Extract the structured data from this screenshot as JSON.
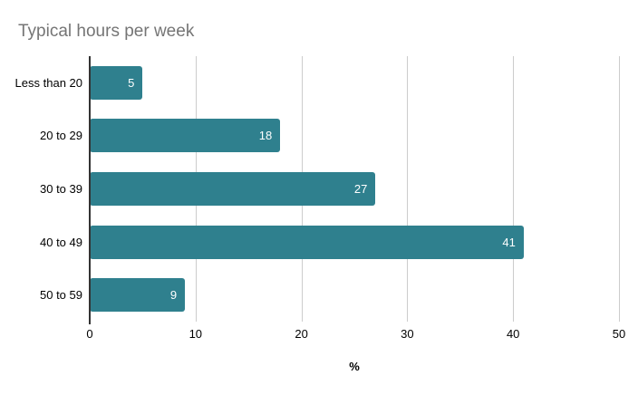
{
  "chart_data": {
    "type": "bar",
    "orientation": "horizontal",
    "title": "Typical hours per week",
    "xlabel": "%",
    "categories": [
      "Less than 20",
      "20 to 29",
      "30 to 39",
      "40 to 49",
      "50 to 59"
    ],
    "values": [
      5,
      18,
      27,
      41,
      9
    ],
    "xticks": [
      0,
      10,
      20,
      30,
      40,
      50
    ],
    "xlim": [
      0,
      50
    ],
    "grid": true,
    "legend": "none",
    "value_label_position": "inside-end"
  },
  "colors": {
    "bar": "#2F808E",
    "title": "#757575",
    "grid": "#CCCCCC",
    "axis": "#333333",
    "tick_label": "#000000",
    "value_label": "#FFFFFF",
    "background": "#FFFFFF"
  }
}
